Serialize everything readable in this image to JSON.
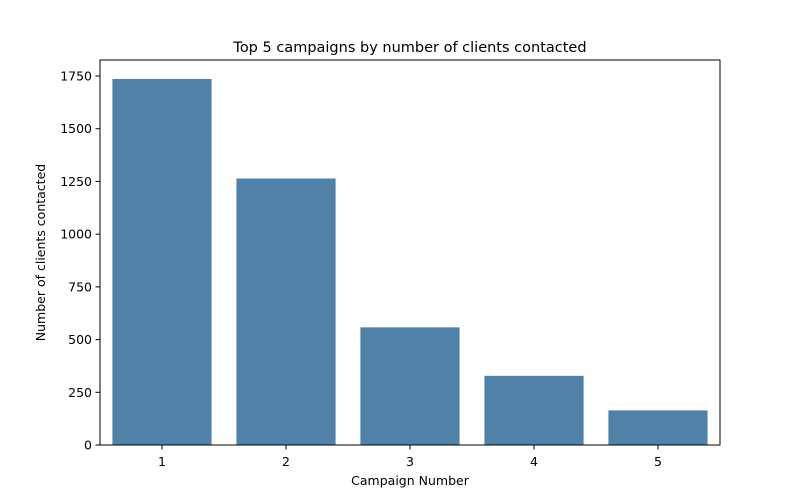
{
  "chart_data": {
    "type": "bar",
    "title": "Top 5 campaigns by number of clients contacted",
    "xlabel": "Campaign Number",
    "ylabel": "Number of clients contacted",
    "categories": [
      "1",
      "2",
      "3",
      "4",
      "5"
    ],
    "values": [
      1736,
      1264,
      558,
      328,
      164
    ],
    "ylim": [
      0,
      1826
    ],
    "yticks": [
      0,
      250,
      500,
      750,
      1000,
      1250,
      1500,
      1750
    ],
    "bar_color": "#4f81a9",
    "grid": false,
    "legend": "none"
  }
}
